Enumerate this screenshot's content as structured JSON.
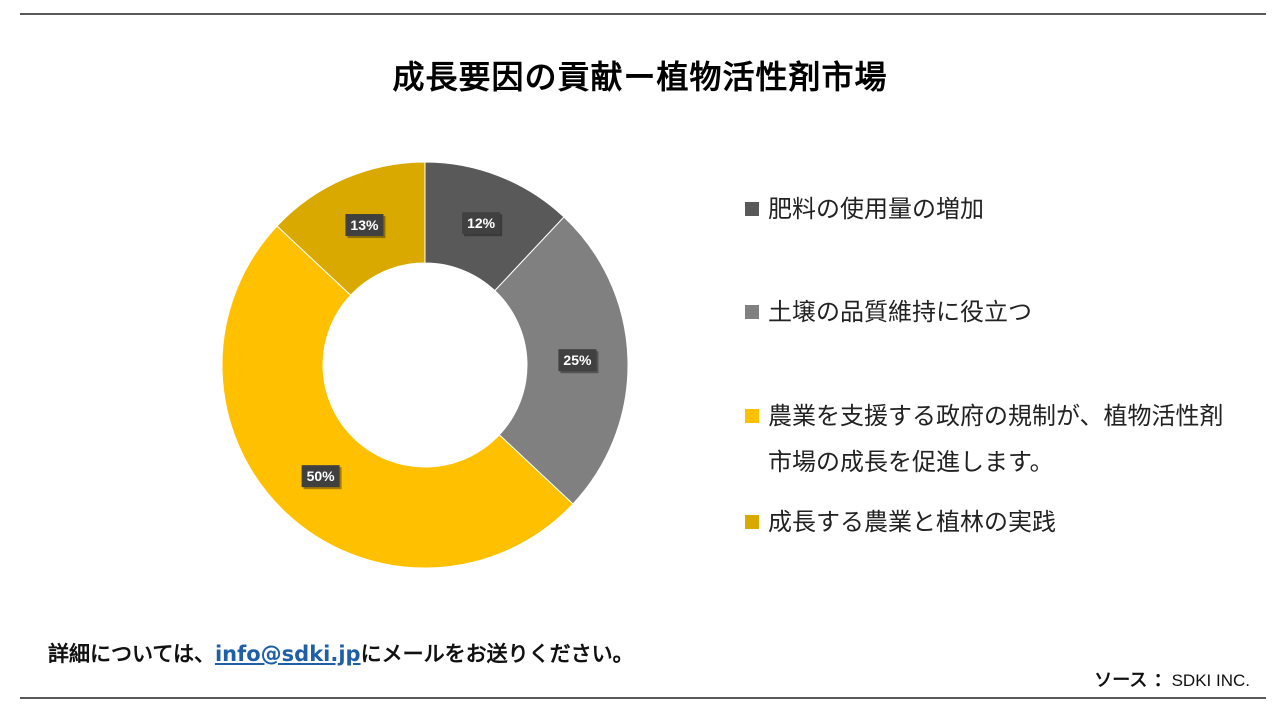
{
  "title": "成長要因の貢献ー植物活性剤市場",
  "chart_data": {
    "type": "pie",
    "donut": true,
    "start_angle_deg": 0,
    "slices": [
      {
        "name": "肥料の使用量の増加",
        "value": 12,
        "label": "12%",
        "color": "#595959"
      },
      {
        "name": "土壌の品質維持に役立つ",
        "value": 25,
        "label": "25%",
        "color": "#808080"
      },
      {
        "name": "農業を支援する政府の規制が、植物活性剤市場の成長を促進します。",
        "value": 50,
        "label": "50%",
        "color": "#FFC000"
      },
      {
        "name": "成長する農業と植林の実践",
        "value": 13,
        "label": "13%",
        "color": "#D9A900"
      }
    ],
    "legend_position": "right"
  },
  "footer": {
    "contact_prefix": "詳細については、",
    "contact_email": "info@sdki.jp",
    "contact_suffix": "にメールをお送りください。",
    "source_label": "ソース ：",
    "source_value": "SDKI INC."
  }
}
